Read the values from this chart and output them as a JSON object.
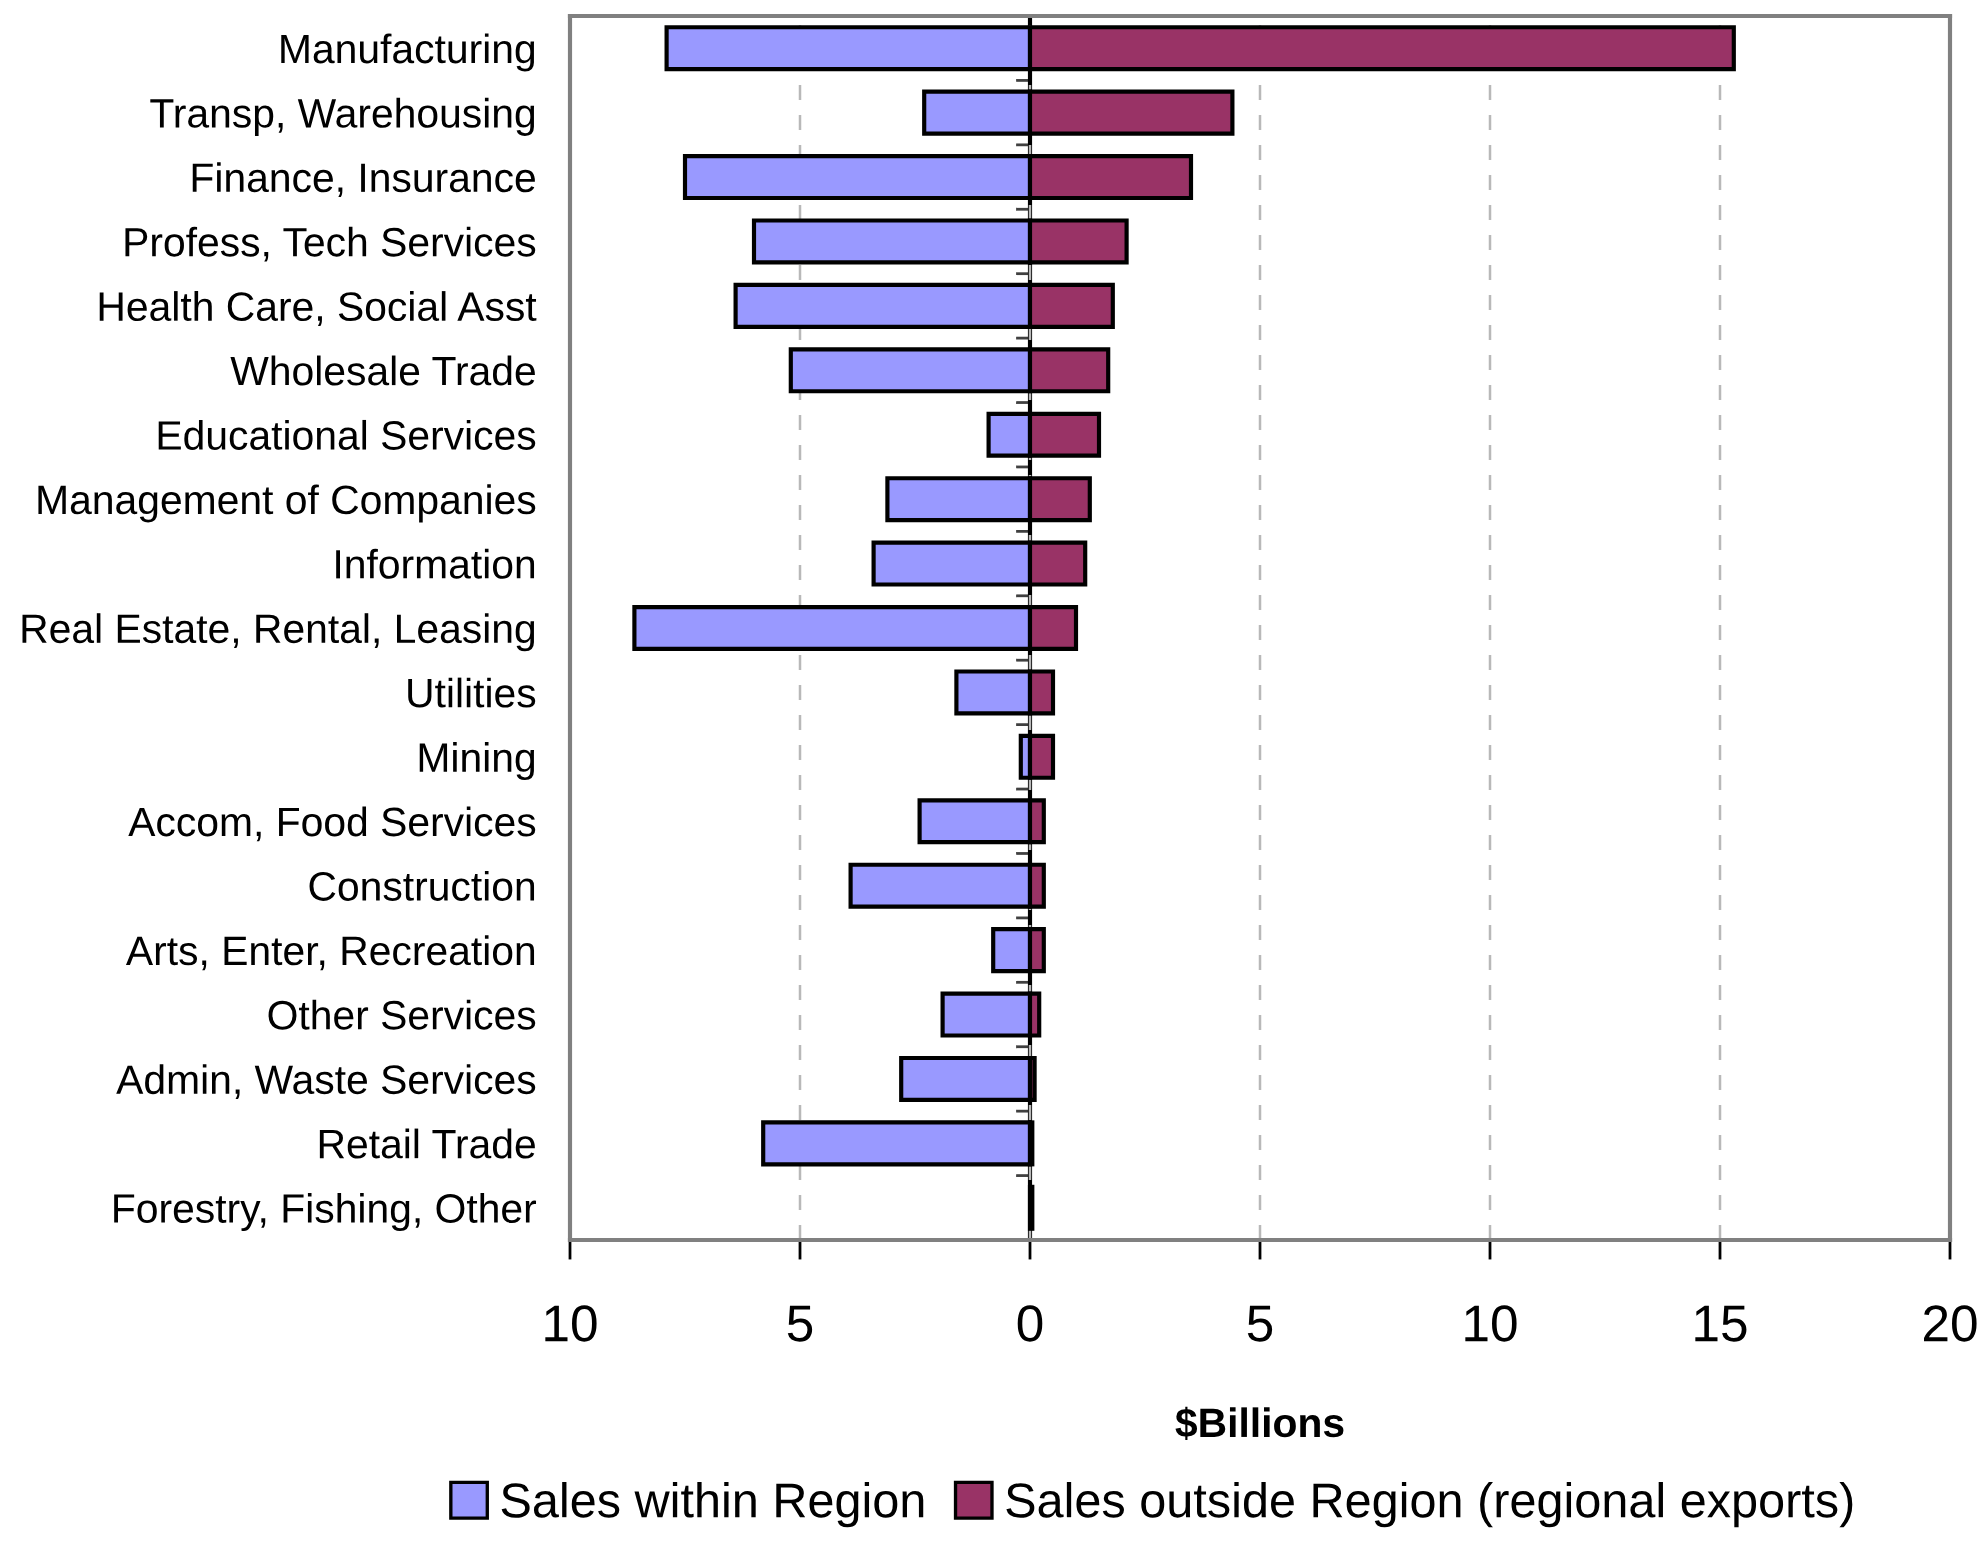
{
  "chart_data": {
    "type": "bar",
    "orientation": "horizontal",
    "stacked": true,
    "categories": [
      "Manufacturing",
      "Transp, Warehousing",
      "Finance, Insurance",
      "Profess, Tech Services",
      "Health Care, Social Asst",
      "Wholesale Trade",
      "Educational Services",
      "Management of Companies",
      "Information",
      "Real Estate, Rental, Leasing",
      "Utilities",
      "Mining",
      "Accom, Food Services",
      "Construction",
      "Arts, Enter, Recreation",
      "Other Services",
      "Admin, Waste Services",
      "Retail Trade",
      "Forestry, Fishing, Other"
    ],
    "series": [
      {
        "name": "Sales within Region",
        "color": "#9999ff",
        "values": [
          -7.9,
          -2.3,
          -7.5,
          -6.0,
          -6.4,
          -5.2,
          -0.9,
          -3.1,
          -3.4,
          -8.6,
          -1.6,
          -0.2,
          -2.4,
          -3.9,
          -0.8,
          -1.9,
          -2.8,
          -5.8,
          null
        ]
      },
      {
        "name": "Sales outside Region (regional exports)",
        "color": "#993366",
        "values": [
          15.3,
          4.4,
          3.5,
          2.1,
          1.8,
          1.7,
          1.5,
          1.3,
          1.2,
          1.0,
          0.5,
          0.5,
          0.3,
          0.3,
          0.3,
          0.2,
          0.1,
          0.05,
          0.05
        ]
      }
    ],
    "xlabel": "$Billions",
    "xlim": [
      -10,
      20
    ],
    "xticks": [
      {
        "value": -10,
        "label": "10"
      },
      {
        "value": -5,
        "label": "5"
      },
      0,
      5,
      10,
      15,
      20
    ],
    "grid": "x",
    "legend": "bottom"
  }
}
